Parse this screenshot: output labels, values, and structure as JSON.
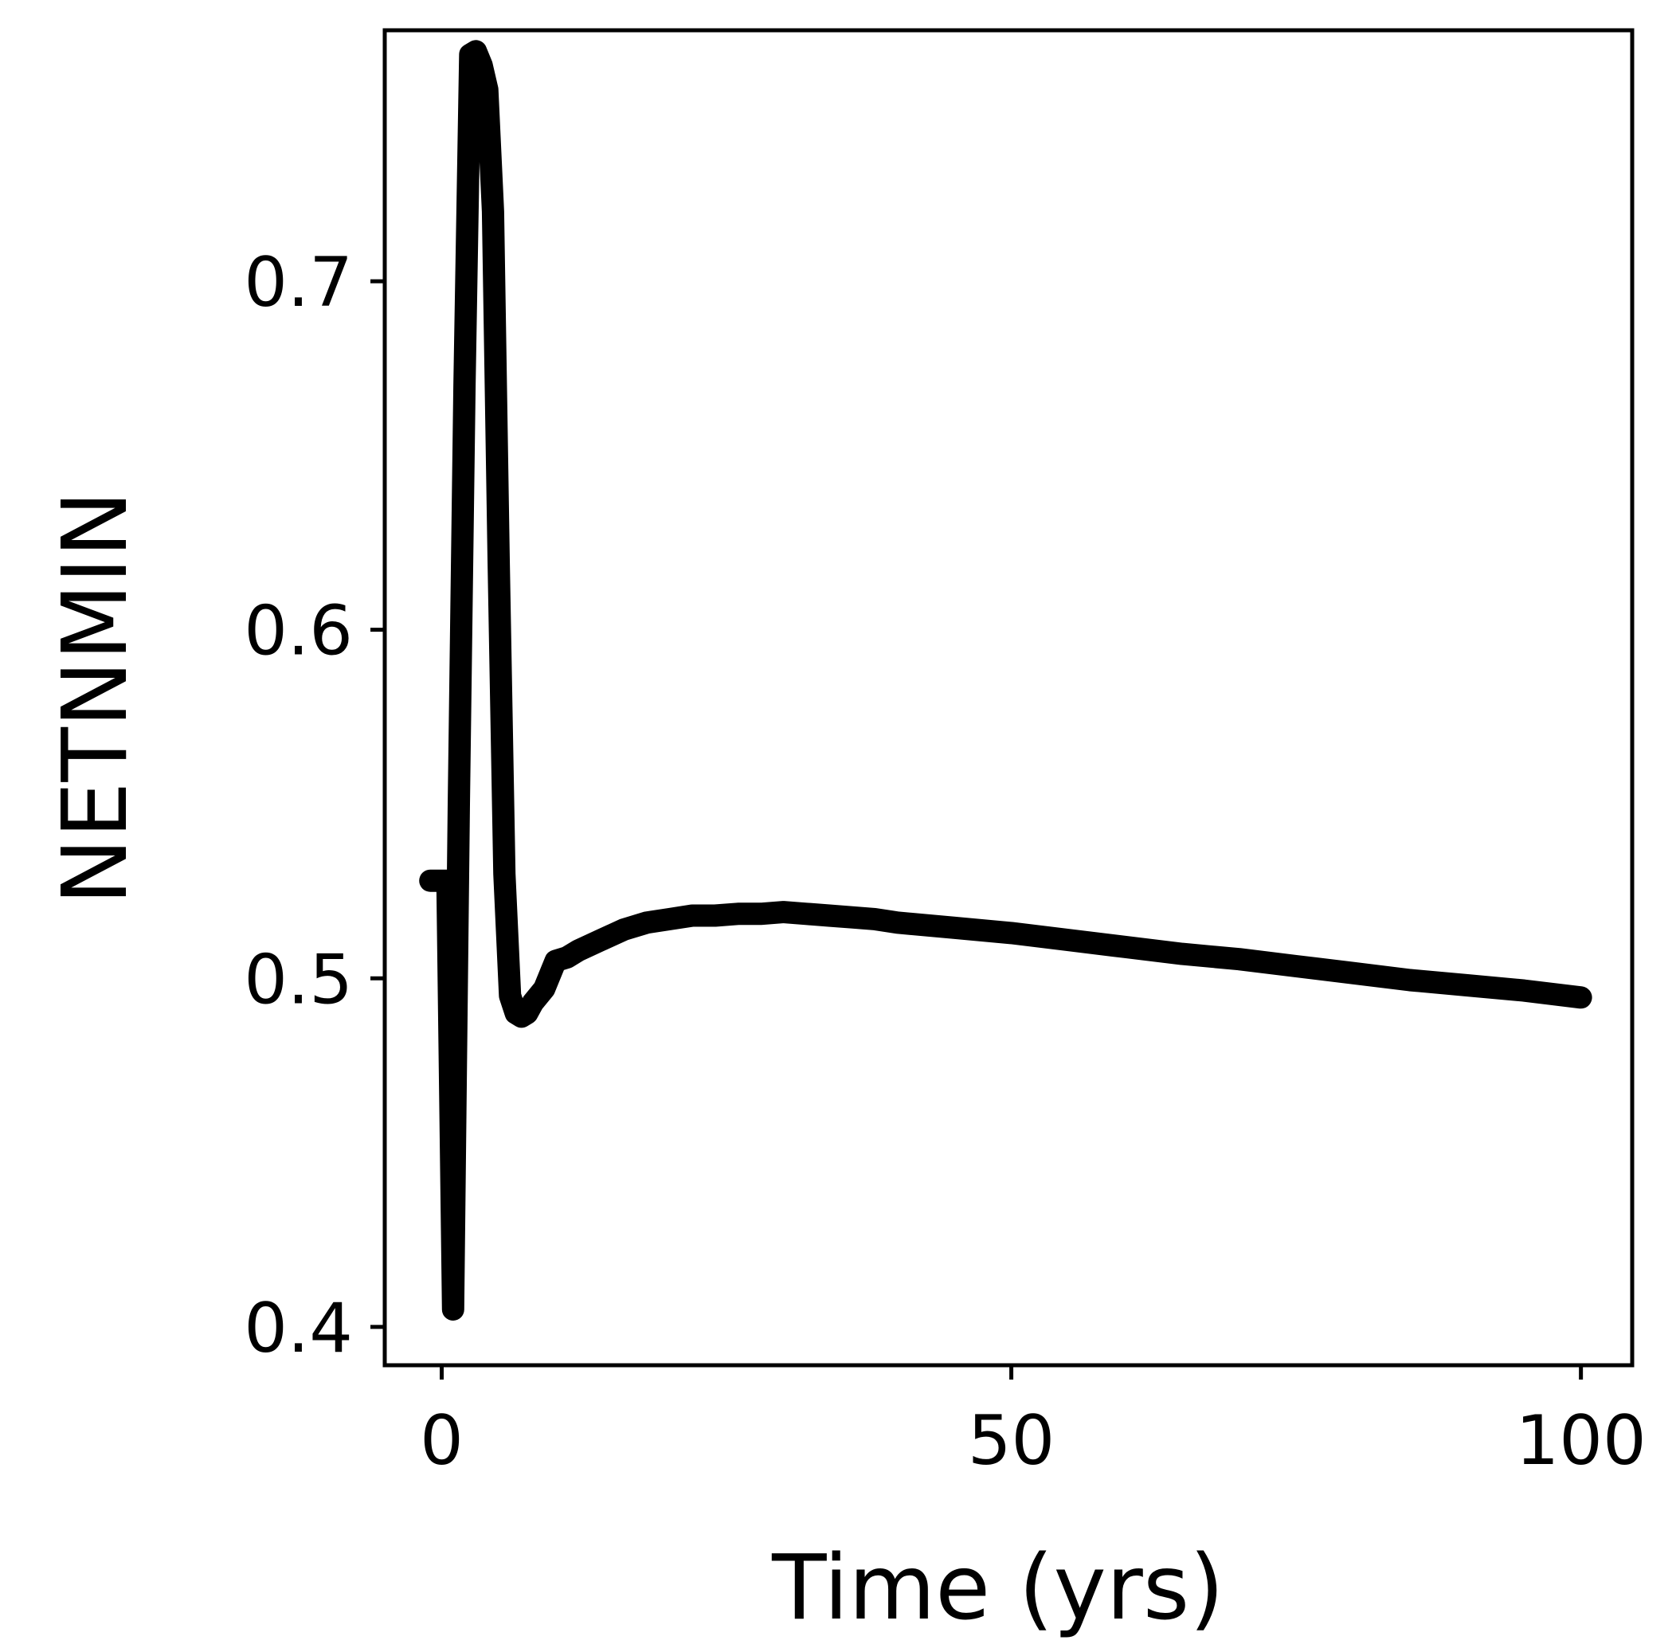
{
  "chart_data": {
    "type": "line",
    "title": "",
    "xlabel": "Time (yrs)",
    "ylabel": "NETNMIN",
    "xlim": [
      -5,
      104.5
    ],
    "ylim": [
      0.389,
      0.772
    ],
    "x_ticks": [
      0,
      50,
      100
    ],
    "x_tick_labels": [
      "0",
      "50",
      "100"
    ],
    "y_ticks": [
      0.4,
      0.5,
      0.6,
      0.7
    ],
    "y_tick_labels": [
      "0.4",
      "0.5",
      "0.6",
      "0.7"
    ],
    "grid": false,
    "legend": "none",
    "series": [
      {
        "color": "#000000",
        "x": [
          -1,
          0,
          0.5,
          1,
          1.5,
          2,
          2.5,
          3,
          3.5,
          4,
          4.5,
          5,
          5.5,
          6,
          6.5,
          7,
          7.5,
          8,
          9,
          10,
          11,
          12,
          14,
          16,
          18,
          20,
          22,
          24,
          26,
          28,
          30,
          32,
          34,
          36,
          38,
          40,
          45,
          50,
          55,
          60,
          65,
          70,
          75,
          80,
          85,
          90,
          95,
          100
        ],
        "y": [
          0.528,
          0.528,
          0.528,
          0.405,
          0.55,
          0.67,
          0.765,
          0.766,
          0.762,
          0.755,
          0.72,
          0.62,
          0.53,
          0.495,
          0.49,
          0.489,
          0.49,
          0.493,
          0.497,
          0.505,
          0.506,
          0.508,
          0.511,
          0.514,
          0.516,
          0.517,
          0.518,
          0.518,
          0.5185,
          0.5185,
          0.519,
          0.5185,
          0.518,
          0.5175,
          0.517,
          0.516,
          0.5145,
          0.513,
          0.511,
          0.509,
          0.507,
          0.5055,
          0.5035,
          0.5015,
          0.4995,
          0.498,
          0.4965,
          0.4945
        ]
      }
    ]
  }
}
